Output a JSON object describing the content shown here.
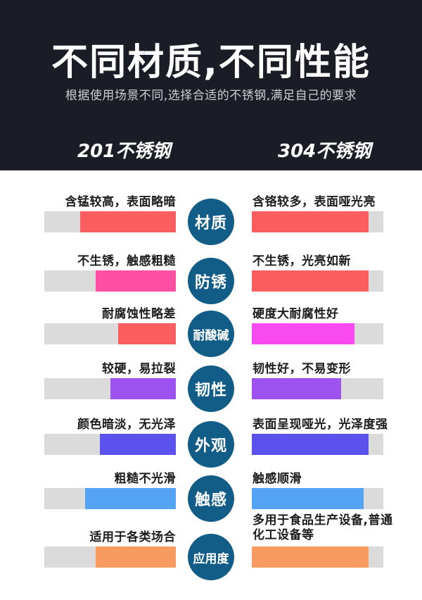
{
  "header": {
    "title": "不同材质,不同性能",
    "subtitle": "根据使用场景不同,选择合适的不锈钢,满足自己的要求",
    "left_column_label": "201不锈钢",
    "right_column_label": "304不锈钢",
    "background": "#1a1d26"
  },
  "colors": {
    "track_gray": "#dbdbdb",
    "badge_blue": "#115d87",
    "red": "#fb5e5e",
    "pink": "#fc4ea3",
    "magenta": "#f94aef",
    "purple": "#9d53ef",
    "indigo": "#5b52ee",
    "sky_blue": "#54a3f6",
    "orange": "#f89b61"
  },
  "rows": [
    {
      "badge": "材质",
      "left": {
        "text": "含锰较高，表面略暗",
        "value": 73,
        "color": "#fb5e5e"
      },
      "right": {
        "text": "含铬较多，表面哑光亮",
        "value": 89,
        "color": "#fb5e5e"
      }
    },
    {
      "badge": "防锈",
      "left": {
        "text": "不生锈，触感粗糙",
        "value": 61,
        "color": "#fc4ea3"
      },
      "right": {
        "text": "不生锈，光亮如新",
        "value": 89,
        "color": "#fb5e5e"
      }
    },
    {
      "badge": "耐酸碱",
      "left": {
        "text": "耐腐蚀性略差",
        "value": 44,
        "color": "#fb5e5e"
      },
      "right": {
        "text": "硬度大耐腐性好",
        "value": 78,
        "color": "#f94aef"
      }
    },
    {
      "badge": "韧性",
      "left": {
        "text": "较硬，易拉裂",
        "value": 50,
        "color": "#9d53ef"
      },
      "right": {
        "text": "韧性好，不易变形",
        "value": 68,
        "color": "#9d53ef"
      }
    },
    {
      "badge": "外观",
      "left": {
        "text": "颜色暗淡，无光泽",
        "value": 58,
        "color": "#5b52ee"
      },
      "right": {
        "text": "表面呈现哑光，光泽度强",
        "value": 89,
        "color": "#5b52ee"
      }
    },
    {
      "badge": "触感",
      "left": {
        "text": "粗糙不光滑",
        "value": 69,
        "color": "#54a3f6"
      },
      "right": {
        "text": "触感顺滑",
        "value": 85,
        "color": "#54a3f6"
      }
    },
    {
      "badge": "应用度",
      "left": {
        "text": "适用于各类场合",
        "value": 61,
        "color": "#f89b61"
      },
      "right": {
        "text": "多用于食品生产设备,普通化工设备等",
        "value": 89,
        "color": "#f89b61"
      }
    }
  ],
  "chart_data": {
    "type": "bar",
    "title": "不同材质,不同性能",
    "subtitle": "根据使用场景不同,选择合适的不锈钢,满足自己的要求",
    "categories": [
      "材质",
      "防锈",
      "耐酸碱",
      "韧性",
      "外观",
      "触感",
      "应用度"
    ],
    "series": [
      {
        "name": "201不锈钢",
        "values": [
          73,
          61,
          44,
          50,
          58,
          69,
          61
        ],
        "labels": [
          "含锰较高，表面略暗",
          "不生锈，触感粗糙",
          "耐腐蚀性略差",
          "较硬，易拉裂",
          "颜色暗淡，无光泽",
          "粗糙不光滑",
          "适用于各类场合"
        ]
      },
      {
        "name": "304不锈钢",
        "values": [
          89,
          89,
          78,
          68,
          89,
          85,
          89
        ],
        "labels": [
          "含铬较多，表面哑光亮",
          "不生锈，光亮如新",
          "硬度大耐腐性好",
          "韧性好，不易变形",
          "表面呈现哑光，光泽度强",
          "触感顺滑",
          "多用于食品生产设备,普通化工设备等"
        ]
      }
    ],
    "value_unit": "percent of track filled (estimated)",
    "xlim": [
      0,
      100
    ],
    "legend_position": "header",
    "grid": false
  }
}
